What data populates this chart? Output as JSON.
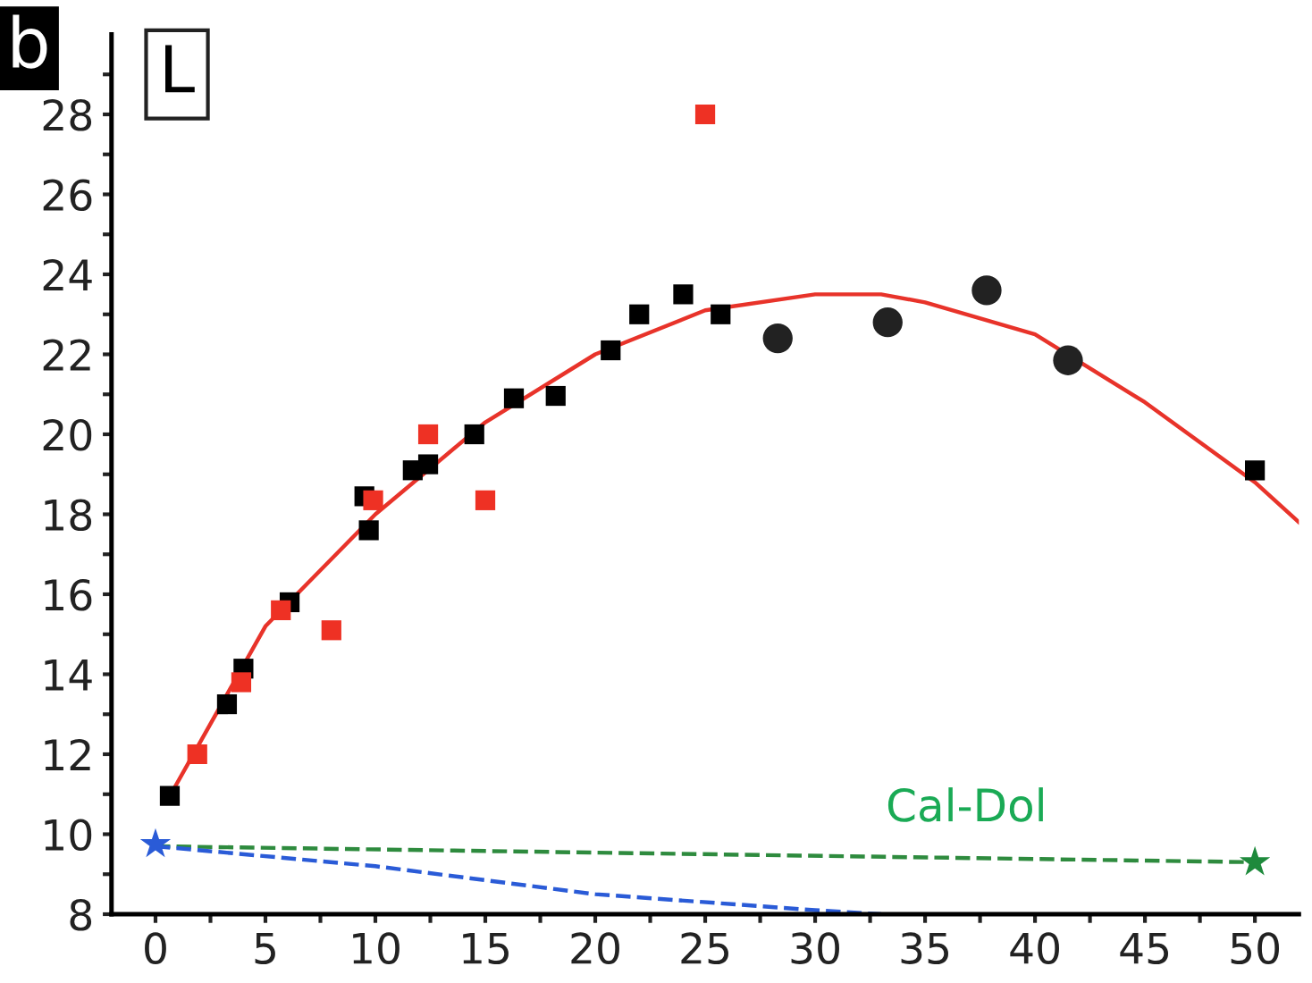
{
  "chart_data": {
    "type": "scatter",
    "xlim": [
      -2,
      52
    ],
    "ylim": [
      8,
      30
    ],
    "xticks": [
      0,
      {
        "value": 2.5,
        "label": null
      },
      5,
      {
        "value": 7.5,
        "label": null
      },
      10,
      {
        "value": 12.5,
        "label": null
      },
      15,
      {
        "value": 17.5,
        "label": null
      },
      20,
      {
        "value": 22.5,
        "label": null
      },
      25,
      {
        "value": 27.5,
        "label": null
      },
      30,
      {
        "value": 32.5,
        "label": null
      },
      35,
      {
        "value": 37.5,
        "label": null
      },
      40,
      {
        "value": 42.5,
        "label": null
      },
      45,
      {
        "value": 47.5,
        "label": null
      },
      50
    ],
    "yticks": [
      8,
      {
        "value": 9,
        "label": null
      },
      10,
      {
        "value": 11,
        "label": null
      },
      12,
      {
        "value": 13,
        "label": null
      },
      14,
      {
        "value": 15,
        "label": null
      },
      16,
      {
        "value": 17,
        "label": null
      },
      18,
      {
        "value": 19,
        "label": null
      },
      20,
      {
        "value": 21,
        "label": null
      },
      22,
      {
        "value": 23,
        "label": null
      },
      24,
      {
        "value": 25,
        "label": null
      },
      26,
      {
        "value": 27,
        "label": null
      },
      28,
      {
        "value": 29,
        "label": null
      }
    ],
    "grid": false,
    "legend": false,
    "annotations": [
      "b",
      "L",
      "Cal-Dol"
    ],
    "series": [
      {
        "type": "line",
        "color": "#e8332a",
        "marker": "none",
        "line_style": "solid",
        "x": [
          0.8,
          5,
          10,
          15,
          20,
          25,
          30,
          33,
          35,
          40,
          45,
          50,
          52
        ],
        "values": [
          11.1,
          15.2,
          18.0,
          20.3,
          22.0,
          23.1,
          23.5,
          23.5,
          23.3,
          22.5,
          20.8,
          18.8,
          17.8
        ]
      },
      {
        "type": "line",
        "color": "#2e8b3e",
        "marker": "none",
        "line_style": "dashed",
        "x": [
          0,
          50
        ],
        "values": [
          9.7,
          9.3
        ]
      },
      {
        "type": "line",
        "color": "#2a5bd7",
        "marker": "none",
        "line_style": "dashed",
        "x": [
          0,
          10,
          20,
          30,
          33
        ],
        "values": [
          9.7,
          9.2,
          8.5,
          8.1,
          8.0
        ]
      },
      {
        "color": "#000000",
        "marker": "square",
        "x": [
          0.65,
          3.25,
          4.0,
          6.1,
          9.5,
          9.7,
          11.7,
          12.4,
          14.5,
          16.3,
          18.2,
          20.7,
          22.0,
          24.0,
          25.7,
          50
        ],
        "values": [
          10.96,
          13.25,
          14.14,
          15.8,
          18.45,
          17.6,
          19.1,
          19.25,
          20.0,
          20.9,
          20.96,
          22.1,
          23.0,
          23.5,
          23.0,
          19.1
        ]
      },
      {
        "color": "#222222",
        "marker": "circle",
        "x": [
          28.3,
          33.3,
          37.8,
          41.5
        ],
        "values": [
          22.4,
          22.8,
          23.6,
          21.85
        ]
      },
      {
        "color": "#ee3124",
        "marker": "square",
        "x": [
          1.9,
          3.9,
          5.7,
          8.0,
          9.9,
          12.4,
          15.0,
          25.0
        ],
        "values": [
          12.0,
          13.8,
          15.6,
          15.1,
          18.35,
          20.0,
          18.35,
          28.0
        ]
      },
      {
        "color": "#2a5bd7",
        "marker": "star",
        "x": [
          0
        ],
        "values": [
          9.75
        ]
      },
      {
        "color": "#1e8a3c",
        "marker": "star",
        "x": [
          50
        ],
        "values": [
          9.3
        ]
      }
    ]
  }
}
